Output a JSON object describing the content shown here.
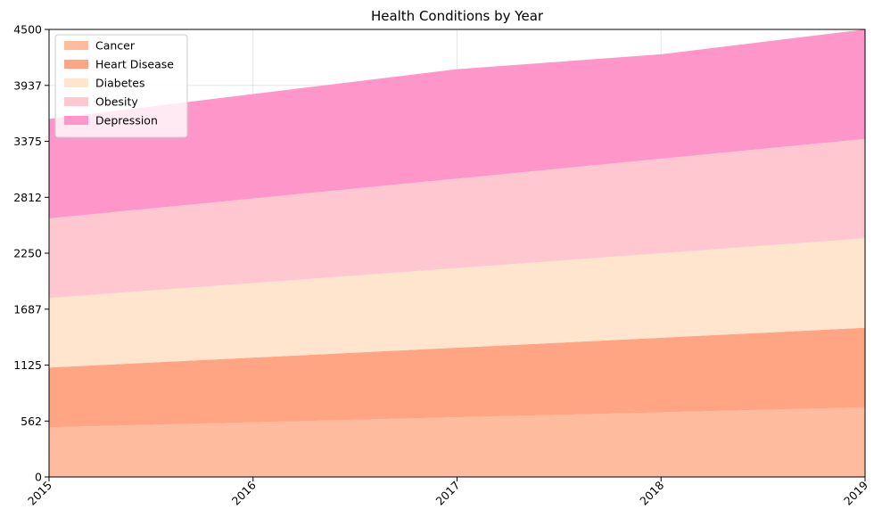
{
  "chart_data": {
    "type": "area",
    "stacked": true,
    "title": "Health Conditions by Year",
    "xlabel": "",
    "ylabel": "",
    "categories": [
      "2015",
      "2016",
      "2017",
      "2018",
      "2019"
    ],
    "ylim": [
      0,
      4500
    ],
    "yticks": [
      "0",
      "562",
      "1125",
      "1687",
      "2250",
      "2812",
      "3375",
      "3937",
      "4500"
    ],
    "grid": true,
    "legend_position": "top-left",
    "series": [
      {
        "name": "Cancer",
        "color": "#ffbb9e",
        "values": [
          500,
          550,
          600,
          650,
          700
        ]
      },
      {
        "name": "Heart Disease",
        "color": "#ffa584",
        "values": [
          600,
          650,
          700,
          750,
          800
        ]
      },
      {
        "name": "Diabetes",
        "color": "#ffe5ce",
        "values": [
          700,
          750,
          800,
          850,
          900
        ]
      },
      {
        "name": "Obesity",
        "color": "#ffc8d1",
        "values": [
          800,
          850,
          900,
          950,
          1000
        ]
      },
      {
        "name": "Depression",
        "color": "#ff96c9",
        "values": [
          1000,
          1050,
          1100,
          1050,
          1100
        ]
      }
    ]
  }
}
